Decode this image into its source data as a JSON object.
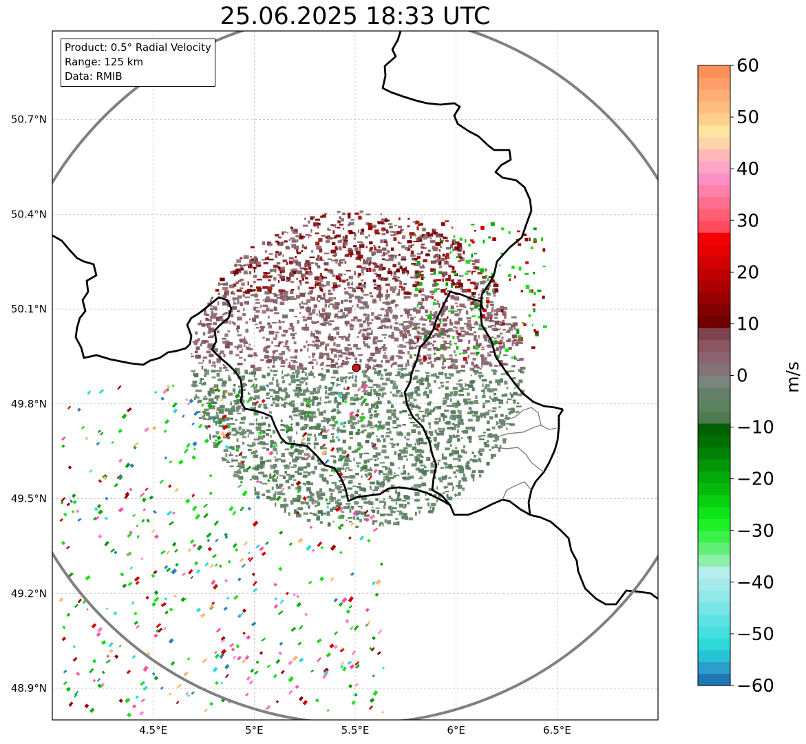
{
  "title": "25.06.2025 18:33 UTC",
  "info": {
    "product": "Product: 0.5° Radial Velocity",
    "range": "Range: 125 km",
    "data": "Data: RMIB"
  },
  "map": {
    "lon_range": [
      4.0,
      7.0
    ],
    "lat_range": [
      48.8,
      50.98
    ],
    "x_ticks": [
      {
        "value": 4.5,
        "label": "4.5°E"
      },
      {
        "value": 5.0,
        "label": "5°E"
      },
      {
        "value": 5.5,
        "label": "5.5°E"
      },
      {
        "value": 6.0,
        "label": "6°E"
      },
      {
        "value": 6.5,
        "label": "6.5°E"
      }
    ],
    "y_ticks": [
      {
        "value": 48.9,
        "label": "48.9°N"
      },
      {
        "value": 49.2,
        "label": "49.2°N"
      },
      {
        "value": 49.5,
        "label": "49.5°N"
      },
      {
        "value": 49.8,
        "label": "49.8°N"
      },
      {
        "value": 50.1,
        "label": "50.1°N"
      },
      {
        "value": 50.4,
        "label": "50.4°N"
      },
      {
        "value": 50.7,
        "label": "50.7°N"
      }
    ],
    "radar_site": {
      "lon": 5.505,
      "lat": 49.914
    },
    "range_km": 125,
    "gridlines": true,
    "colors": {
      "border": "#000000",
      "province": "#808080",
      "range_ring": "#808080",
      "radar_site": "#e01010"
    }
  },
  "colorbar": {
    "label": "m/s",
    "vmin": -60,
    "vmax": 60,
    "ticks": [
      {
        "value": 60,
        "label": "60"
      },
      {
        "value": 50,
        "label": "50"
      },
      {
        "value": 40,
        "label": "40"
      },
      {
        "value": 30,
        "label": "30"
      },
      {
        "value": 20,
        "label": "20"
      },
      {
        "value": 10,
        "label": "10"
      },
      {
        "value": 0,
        "label": "0"
      },
      {
        "value": -10,
        "label": "−10"
      },
      {
        "value": -20,
        "label": "−20"
      },
      {
        "value": -30,
        "label": "−30"
      },
      {
        "value": -40,
        "label": "−40"
      },
      {
        "value": -50,
        "label": "−50"
      },
      {
        "value": -60,
        "label": "−60"
      }
    ],
    "colors_bottom_to_top": [
      "#1f78b4",
      "#2a9fcc",
      "#27c4d6",
      "#2edad9",
      "#45dfdf",
      "#5ee3e3",
      "#78e6e6",
      "#90e8e8",
      "#a6ebeb",
      "#b8eeee",
      "#8df0a8",
      "#62ef78",
      "#3cf04c",
      "#1ff028",
      "#0ee518",
      "#06d010",
      "#04bb0c",
      "#03a80a",
      "#029508",
      "#018206",
      "#006f04",
      "#006003",
      "#4e7a52",
      "#5a8260",
      "#657f68",
      "#7a857e",
      "#837278",
      "#8c6470",
      "#8a5660",
      "#7e4250",
      "#6e0000",
      "#820000",
      "#960000",
      "#aa0000",
      "#be0000",
      "#d20000",
      "#e60000",
      "#f50000",
      "#ff4a5e",
      "#ff5f72",
      "#ff7090",
      "#ff80aa",
      "#ff90c6",
      "#ffa6c8",
      "#ffb8b8",
      "#ffd4a8",
      "#ffe6a0",
      "#ffd08c",
      "#ffbe80",
      "#ffad74",
      "#ff9e68",
      "#ff9058"
    ]
  }
}
